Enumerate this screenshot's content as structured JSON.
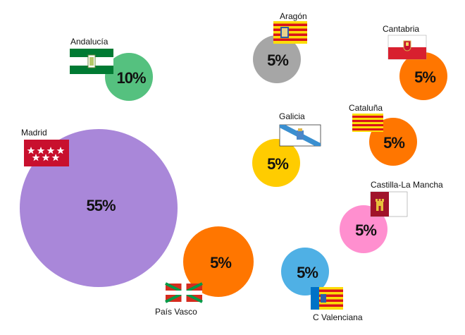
{
  "chart_data": {
    "type": "bubble",
    "title": "",
    "value_unit": "%",
    "series": [
      {
        "name": "Madrid",
        "value": 55,
        "label": "55%",
        "color": "#a987d9",
        "flag_icon": "flag-madrid-icon"
      },
      {
        "name": "Andalucía",
        "value": 10,
        "label": "10%",
        "color": "#55c17f",
        "flag_icon": "flag-andalucia-icon"
      },
      {
        "name": "Aragón",
        "value": 5,
        "label": "5%",
        "color": "#a6a6a6",
        "flag_icon": "flag-aragon-icon"
      },
      {
        "name": "Cantabria",
        "value": 5,
        "label": "5%",
        "color": "#ff7600",
        "flag_icon": "flag-cantabria-icon"
      },
      {
        "name": "Galicia",
        "value": 5,
        "label": "5%",
        "color": "#ffcc00",
        "flag_icon": "flag-galicia-icon"
      },
      {
        "name": "Cataluña",
        "value": 5,
        "label": "5%",
        "color": "#ff7600",
        "flag_icon": "flag-cataluna-icon"
      },
      {
        "name": "Castilla-La Mancha",
        "value": 5,
        "label": "5%",
        "color": "#ff8fcf",
        "flag_icon": "flag-castilla-la-mancha-icon"
      },
      {
        "name": "País Vasco",
        "value": 5,
        "label": "5%",
        "color": "#ff7600",
        "flag_icon": "flag-pais-vasco-icon"
      },
      {
        "name": "C Valenciana",
        "value": 5,
        "label": "5%",
        "color": "#4fb0e5",
        "flag_icon": "flag-c-valenciana-icon"
      }
    ]
  }
}
